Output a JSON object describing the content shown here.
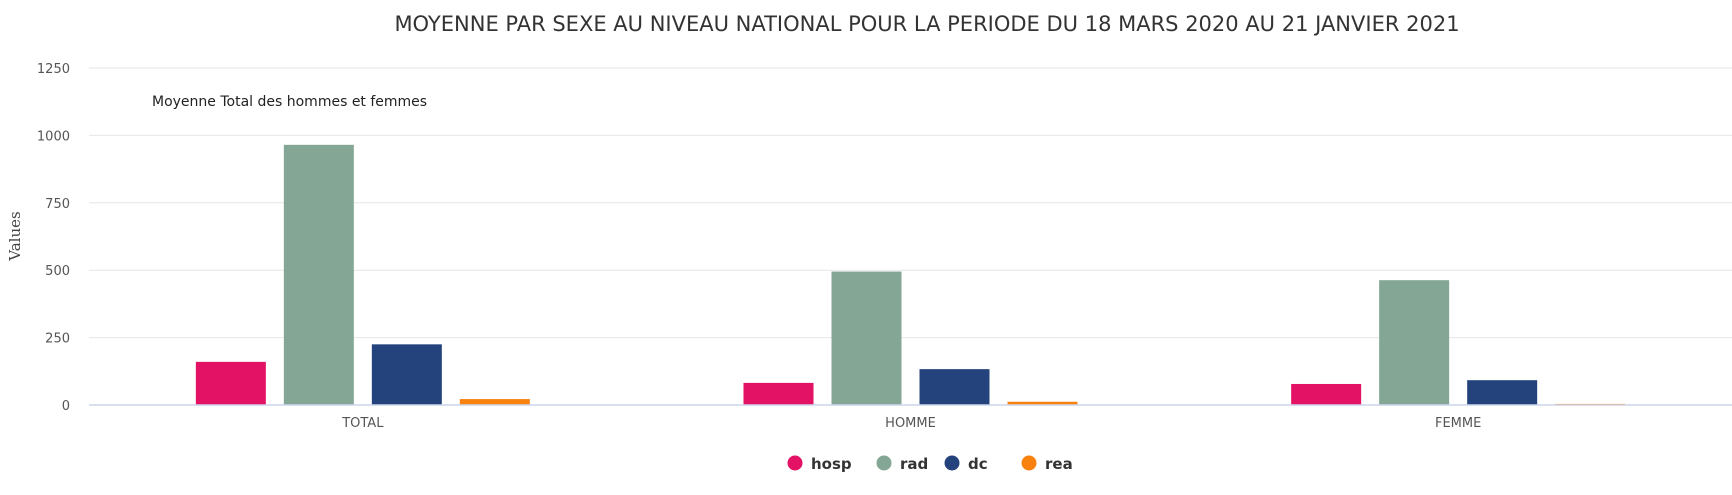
{
  "chart_data": {
    "type": "bar",
    "title": "MOYENNE PAR SEXE AU NIVEAU NATIONAL POUR LA PERIODE DU 18 MARS 2020 AU 21 JANVIER 2021",
    "subtitle": "Moyenne Total des hommes et femmes",
    "ylabel": "Values",
    "xlabel": "",
    "categories": [
      "TOTAL",
      "HOMME",
      "FEMME"
    ],
    "ylim": [
      0,
      1250
    ],
    "yticks": [
      0,
      250,
      500,
      750,
      1000,
      1250
    ],
    "grid": true,
    "legend_position": "bottom-center",
    "series": [
      {
        "name": "hosp",
        "color": "#e31264",
        "values": [
          160,
          82,
          78
        ]
      },
      {
        "name": "rad",
        "color": "#84a695",
        "values": [
          965,
          495,
          463
        ]
      },
      {
        "name": "dc",
        "color": "#24437c",
        "values": [
          225,
          133,
          92
        ]
      },
      {
        "name": "rea",
        "color": "#f9820f",
        "values": [
          22,
          12,
          4
        ]
      }
    ]
  }
}
